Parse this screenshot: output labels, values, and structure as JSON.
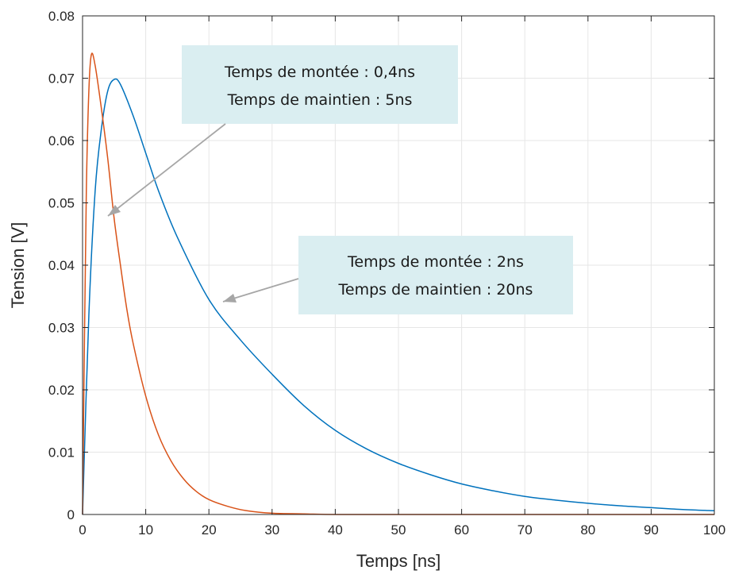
{
  "chart_data": {
    "type": "line",
    "title": "",
    "xlabel": "Temps [ns]",
    "ylabel": "Tension [V]",
    "xlim": [
      0,
      100
    ],
    "ylim": [
      0,
      0.08
    ],
    "x_ticks": [
      "0",
      "10",
      "20",
      "30",
      "40",
      "50",
      "60",
      "70",
      "80",
      "90",
      "100"
    ],
    "y_ticks": [
      "0",
      "0.01",
      "0.02",
      "0.03",
      "0.04",
      "0.05",
      "0.06",
      "0.07",
      "0.08"
    ],
    "grid": true,
    "legend": "none",
    "series": [
      {
        "color": "#0072bd",
        "x": [
          0,
          1,
          2,
          3,
          4,
          5,
          6,
          8,
          10,
          12,
          15,
          20,
          25,
          30,
          35,
          40,
          45,
          50,
          55,
          60,
          65,
          70,
          75,
          80,
          85,
          90,
          95,
          100
        ],
        "y": [
          0,
          0.032,
          0.052,
          0.062,
          0.068,
          0.0698,
          0.069,
          0.064,
          0.058,
          0.052,
          0.0445,
          0.0345,
          0.028,
          0.0225,
          0.0175,
          0.0135,
          0.0105,
          0.0082,
          0.0064,
          0.0049,
          0.0038,
          0.0029,
          0.0023,
          0.0018,
          0.0014,
          0.0011,
          0.0008,
          0.0006
        ]
      },
      {
        "color": "#d95319",
        "x": [
          0,
          0.3,
          0.6,
          1.0,
          1.4,
          2,
          3,
          4,
          5,
          6,
          7,
          8,
          10,
          12,
          14,
          16,
          18,
          20,
          23,
          26,
          30,
          35,
          40,
          50,
          60,
          100
        ],
        "y": [
          0,
          0.028,
          0.052,
          0.068,
          0.0738,
          0.072,
          0.065,
          0.057,
          0.0475,
          0.04,
          0.033,
          0.0275,
          0.019,
          0.0128,
          0.0086,
          0.0057,
          0.0037,
          0.0024,
          0.0013,
          0.0006,
          0.0002,
          0.0001,
          0,
          0,
          0,
          0
        ]
      }
    ],
    "annotations": [
      {
        "line1": "Temps de montée : 0,4ns",
        "line2": "Temps de maintien : 5ns",
        "points_to": [
          4,
          0.048
        ]
      },
      {
        "line1": "Temps de montée : 2ns",
        "line2": "Temps de maintien : 20ns",
        "points_to": [
          22,
          0.034
        ]
      }
    ],
    "colors": {
      "box_fill": "#daeef1",
      "arrow": "#a6a6a6",
      "grid": "#e6e6e6",
      "axis": "#262626"
    }
  }
}
